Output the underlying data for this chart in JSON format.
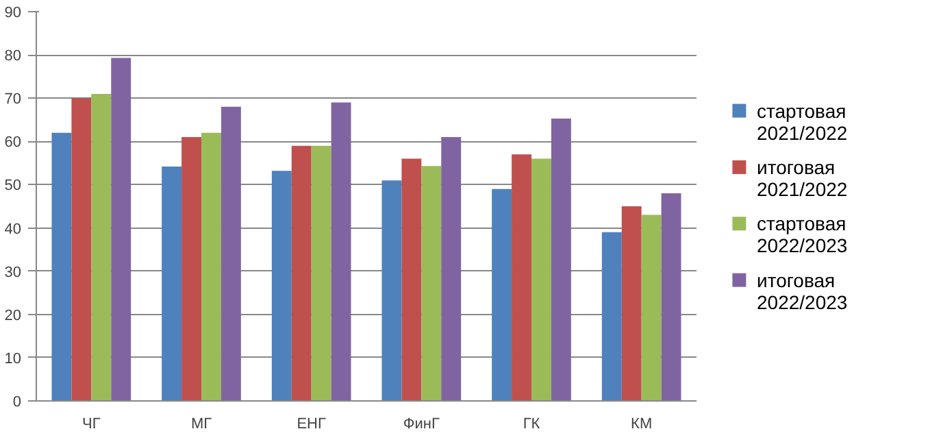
{
  "chart_data": {
    "type": "bar",
    "categories": [
      "ЧГ",
      "МГ",
      "ЕНГ",
      "ФинГ",
      "ГК",
      "КМ"
    ],
    "series": [
      {
        "name": "стартовая 2021/2022",
        "color": "#4f81bd",
        "values": [
          62,
          54.2,
          53.2,
          51,
          49,
          39
        ]
      },
      {
        "name": "итоговая 2021/2022",
        "color": "#c0504d",
        "values": [
          70,
          61,
          59,
          56,
          57,
          45
        ]
      },
      {
        "name": "стартовая 2022/2023",
        "color": "#9bbb59",
        "values": [
          71,
          62,
          59,
          54.3,
          56,
          43
        ]
      },
      {
        "name": "итоговая 2022/2023",
        "color": "#8064a2",
        "values": [
          79.3,
          68,
          69,
          61,
          65.3,
          48
        ]
      }
    ],
    "ylim": [
      0,
      90
    ],
    "yticks": [
      0,
      10,
      20,
      30,
      40,
      50,
      60,
      70,
      80,
      90
    ],
    "grid": "y",
    "legend": "right"
  }
}
